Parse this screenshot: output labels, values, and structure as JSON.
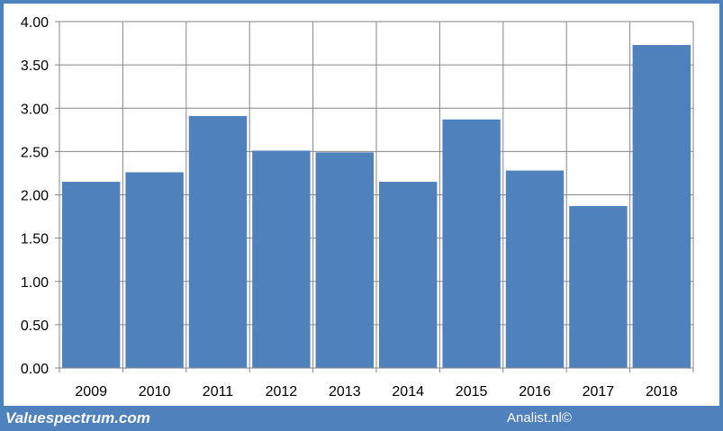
{
  "chart_data": {
    "type": "bar",
    "categories": [
      "2009",
      "2010",
      "2011",
      "2012",
      "2013",
      "2014",
      "2015",
      "2016",
      "2017",
      "2018"
    ],
    "values": [
      2.15,
      2.26,
      2.91,
      2.51,
      2.49,
      2.15,
      2.87,
      2.28,
      1.87,
      3.73
    ],
    "title": "",
    "xlabel": "",
    "ylabel": "",
    "ylim": [
      0,
      4
    ],
    "yticks": [
      "0.00",
      "0.50",
      "1.00",
      "1.50",
      "2.00",
      "2.50",
      "3.00",
      "3.50",
      "4.00"
    ],
    "grid": "vertical and horizontal",
    "bar_color": "#4f81bd",
    "grid_color": "#868686"
  },
  "footer": {
    "left_text": "Valuespectrum.com",
    "right_text": "Analist.nl©"
  },
  "colors": {
    "border": "#4f81bd",
    "background": "#ffffff"
  }
}
